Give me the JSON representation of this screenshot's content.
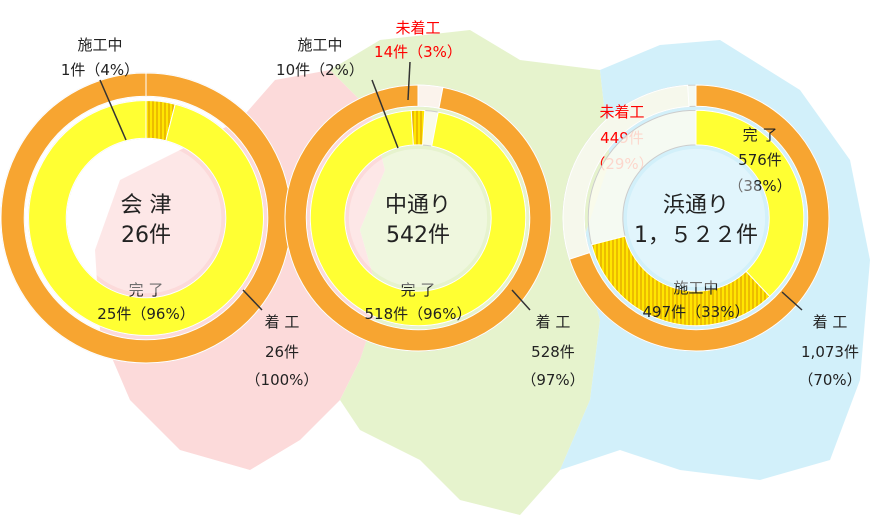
{
  "chart_data": [
    {
      "type": "donut",
      "center": [
        "会 津",
        "26件"
      ],
      "rings": [
        {
          "series": [
            {
              "name": "着 工",
              "count": 26,
              "count_label": "26件",
              "value": 100,
              "value_label": "（100%）",
              "color": "#f7a531"
            }
          ]
        },
        {
          "series": [
            {
              "name": "施工中",
              "count": 1,
              "count_label": "1件",
              "value": 4,
              "value_label": "（4%）",
              "color": "#ffd400",
              "hatch": true
            },
            {
              "name": "完 了",
              "count": 25,
              "count_label": "25件",
              "value": 96,
              "value_label": "（96%）",
              "color": "#ffff33"
            }
          ]
        }
      ]
    },
    {
      "type": "donut",
      "center": [
        "中通り",
        "542件"
      ],
      "rings": [
        {
          "series": [
            {
              "name": "未着工",
              "count": 14,
              "count_label": "14件",
              "value": 3,
              "value_label": "（3%）",
              "color": "#fbf3ec",
              "label_color": "#ff0000"
            },
            {
              "name": "着 工",
              "count": 528,
              "count_label": "528件",
              "value": 97,
              "value_label": "（97%）",
              "color": "#f7a531"
            }
          ]
        },
        {
          "series": [
            {
              "name": "完 了",
              "count": 518,
              "count_label": "518件",
              "value": 96,
              "value_label": "（96%）",
              "color": "#ffff33"
            },
            {
              "name": "施工中",
              "count": 10,
              "count_label": "10件",
              "value": 2,
              "value_label": "（2%）",
              "color": "#ffd400",
              "hatch": true
            }
          ]
        }
      ]
    },
    {
      "type": "donut",
      "center": [
        "浜通り",
        "1，５２２件"
      ],
      "rings": [
        {
          "series": [
            {
              "name": "着 工",
              "count": 1073,
              "count_label": "1,073件",
              "value": 70,
              "value_label": "（70%）",
              "color": "#f7a531"
            },
            {
              "name": "未着工",
              "count": 449,
              "count_label": "449件",
              "value": 29,
              "value_label": "（29%）",
              "color": "#f6f8ec",
              "label_color": "#ff0000"
            }
          ]
        },
        {
          "series": [
            {
              "name": "完 了",
              "count": 576,
              "count_label": "576件",
              "value": 38,
              "value_label": "（38%）",
              "color": "#ffff33"
            },
            {
              "name": "施工中",
              "count": 497,
              "count_label": "497件",
              "value": 33,
              "value_label": "（33%）",
              "color": "#ffd400",
              "hatch": true
            }
          ]
        }
      ]
    }
  ]
}
